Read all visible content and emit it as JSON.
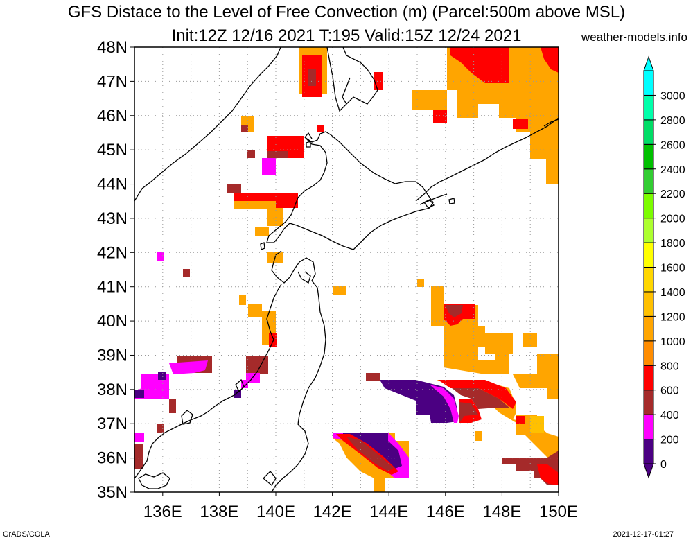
{
  "title": {
    "line1": "GFS Distace to the Level of Free Convection (m) (Parcel:500m above MSL)",
    "line2": "Init:12Z 12/16 2021 T:195 Valid:15Z 12/24 2021"
  },
  "site_label": "weather-models.info",
  "footer": {
    "left": "GrADS/COLA",
    "right": "2021-12-17-01:27"
  },
  "map": {
    "lat_labels": [
      "48N",
      "47N",
      "46N",
      "45N",
      "44N",
      "43N",
      "42N",
      "41N",
      "40N",
      "39N",
      "38N",
      "37N",
      "36N",
      "35N"
    ],
    "lon_labels": [
      "136E",
      "138E",
      "140E",
      "142E",
      "144E",
      "146E",
      "148E",
      "150E"
    ],
    "lat_range": [
      35,
      48
    ],
    "lon_range": [
      135,
      150
    ],
    "grid": true
  },
  "colorbar": {
    "labels": [
      "0",
      "200",
      "400",
      "600",
      "800",
      "1000",
      "1200",
      "1400",
      "1600",
      "1800",
      "2000",
      "2200",
      "2400",
      "2600",
      "2800",
      "3000"
    ],
    "colors": [
      "#4b0082",
      "#ff00ff",
      "#a52a2a",
      "#ff0000",
      "#ff8c00",
      "#ffa500",
      "#ffc000",
      "#ffd700",
      "#ffff00",
      "#adff2f",
      "#7cfc00",
      "#32cd32",
      "#00c000",
      "#00dd66",
      "#00ffaa",
      "#00ffff"
    ],
    "top_arrow_color": "#00ffff",
    "bottom_arrow_color": "#4b0082"
  },
  "field_colors": {
    "v0": "#4b0082",
    "v200": "#ff00ff",
    "v400": "#a52a2a",
    "v600": "#ff0000",
    "v800": "#ff8c00",
    "v1000": "#ffa500",
    "v1200": "#ffc000"
  }
}
